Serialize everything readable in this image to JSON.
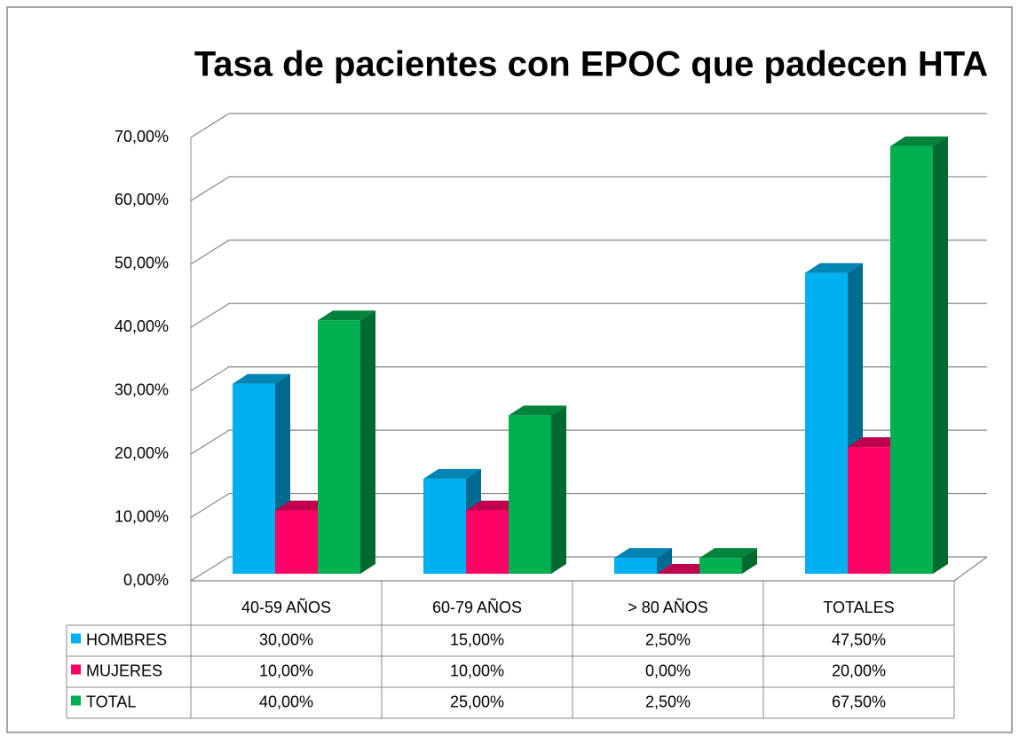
{
  "chart_data": {
    "type": "bar3d",
    "title": "Tasa de pacientes con EPOC que padecen HTA",
    "categories": [
      "40-59 AÑOS",
      "60-79 AÑOS",
      "> 80 AÑOS",
      "TOTALES"
    ],
    "series": [
      {
        "name": "HOMBRES",
        "color": "#00b0f0",
        "values": [
          30,
          15,
          2.5,
          47.5
        ],
        "value_labels": [
          "30,00%",
          "15,00%",
          "2,50%",
          "47,50%"
        ]
      },
      {
        "name": "MUJERES",
        "color": "#ff0066",
        "values": [
          10,
          10,
          0,
          20
        ],
        "value_labels": [
          "10,00%",
          "10,00%",
          "0,00%",
          "20,00%"
        ]
      },
      {
        "name": "TOTAL",
        "color": "#00b050",
        "values": [
          40,
          25,
          2.5,
          67.5
        ],
        "value_labels": [
          "40,00%",
          "25,00%",
          "2,50%",
          "67,50%"
        ]
      }
    ],
    "ylim": [
      0,
      70
    ],
    "yticks": [
      {
        "value": 0,
        "label": "0,00%"
      },
      {
        "value": 10,
        "label": "10,00%"
      },
      {
        "value": 20,
        "label": "20,00%"
      },
      {
        "value": 30,
        "label": "30,00%"
      },
      {
        "value": 40,
        "label": "40,00%"
      },
      {
        "value": 50,
        "label": "50,00%"
      },
      {
        "value": 60,
        "label": "60,00%"
      },
      {
        "value": 70,
        "label": "70,00%"
      }
    ],
    "grid": true,
    "data_table": true
  }
}
